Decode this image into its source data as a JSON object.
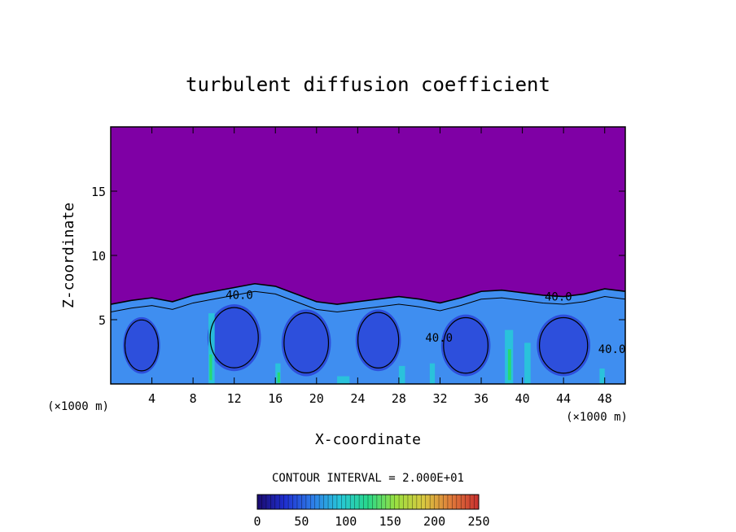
{
  "chart_data": {
    "type": "heatmap",
    "title": "turbulent diffusion coefficient",
    "xlabel": "X-coordinate",
    "ylabel": "Z-coordinate",
    "x_unit": "(×1000 m)",
    "z_unit": "(×1000 m)",
    "xlim": [
      0,
      50
    ],
    "ylim": [
      0,
      20
    ],
    "x_ticks": [
      4,
      8,
      12,
      16,
      20,
      24,
      28,
      32,
      36,
      40,
      44,
      48
    ],
    "y_ticks": [
      5,
      10,
      15
    ],
    "contour_interval_text": "CONTOUR INTERVAL = 2.000E+01",
    "contour_labels": [
      {
        "text": "40.0",
        "x": 12.5,
        "z": 6.6
      },
      {
        "text": "40.0",
        "x": 31.9,
        "z": 3.3
      },
      {
        "text": "40.0",
        "x": 43.5,
        "z": 6.5
      },
      {
        "text": "40.0",
        "x": 48.7,
        "z": 2.4
      }
    ],
    "boundary_top_profile": {
      "x": [
        0,
        2,
        4,
        6,
        8,
        10,
        12,
        14,
        16,
        18,
        20,
        22,
        24,
        26,
        28,
        30,
        32,
        34,
        36,
        38,
        40,
        42,
        44,
        46,
        48,
        50
      ],
      "z": [
        6.2,
        6.5,
        6.7,
        6.4,
        6.9,
        7.2,
        7.5,
        7.8,
        7.6,
        7.0,
        6.4,
        6.2,
        6.4,
        6.6,
        6.8,
        6.6,
        6.3,
        6.7,
        7.2,
        7.3,
        7.1,
        6.9,
        6.8,
        7.0,
        7.4,
        7.2
      ]
    },
    "colorbar": {
      "range": [
        0,
        250
      ],
      "tick_labels": [
        "0",
        "50",
        "100",
        "150",
        "200",
        "250"
      ],
      "colors": [
        "#1a0a6e",
        "#1f2fd0",
        "#2e7de8",
        "#27c7d8",
        "#28d88a",
        "#9be040",
        "#d8c840",
        "#e07a3a",
        "#c83030"
      ]
    },
    "colors": {
      "background_field": "#7f00a5",
      "low_field": "#2a44d8",
      "mid_field": "#3f8ef0",
      "high_field": "#28c8d8",
      "peak_field": "#28d870"
    }
  }
}
